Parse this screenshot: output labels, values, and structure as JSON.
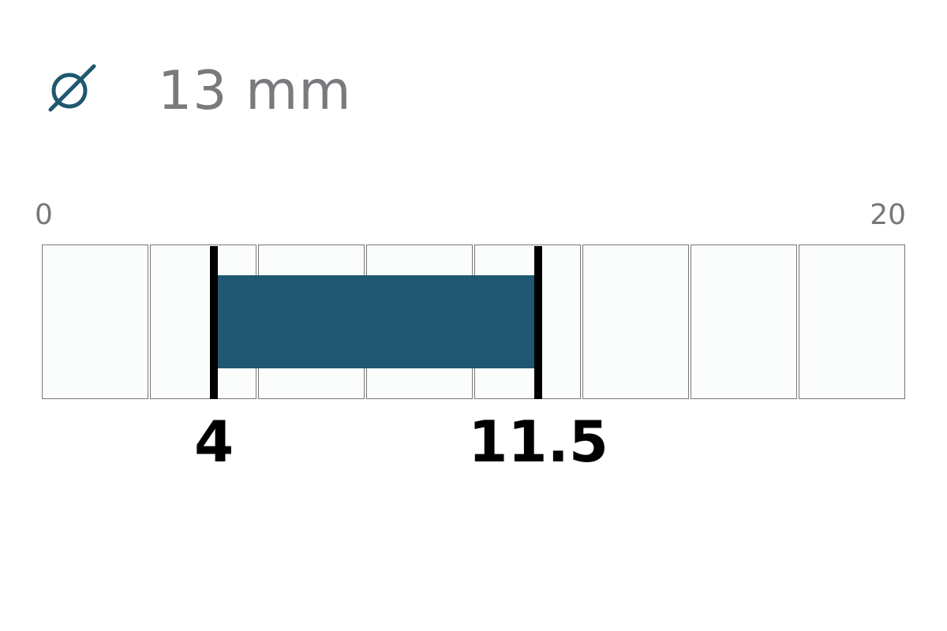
{
  "header": {
    "icon": "diameter-icon",
    "size_label": "13 mm"
  },
  "chart_data": {
    "type": "range-bar",
    "scale_min_label": "0",
    "scale_max_label": "20",
    "range": [
      0,
      20
    ],
    "divisions": 8,
    "selected_min": 4,
    "selected_max": 11.5,
    "selected_min_label": "4",
    "selected_max_label": "11.5"
  },
  "colors": {
    "accent": "#1f5870",
    "text_gray": "#7a7a7e",
    "marker": "#000000",
    "cell_bg": "#fbfdfc",
    "cell_border": "#777777"
  }
}
